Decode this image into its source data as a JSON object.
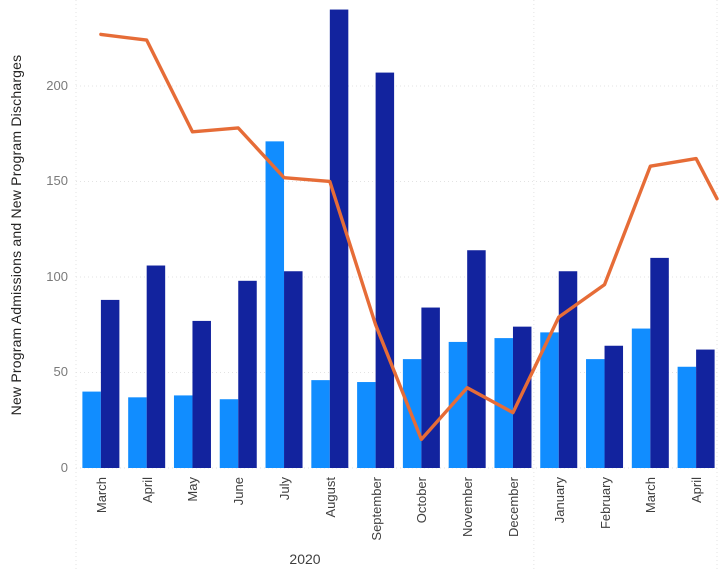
{
  "chart_data": {
    "type": "combo",
    "title": "",
    "ylabel": "New Program Admissions and New Program Discharges",
    "xlabel": "",
    "x_year_label": "2020",
    "categories": [
      "March",
      "April",
      "May",
      "June",
      "July",
      "August",
      "September",
      "October",
      "November",
      "December",
      "January",
      "February",
      "March",
      "April"
    ],
    "series": [
      {
        "name": "bars-light-blue",
        "type": "bar",
        "color": "#118DFF",
        "values": [
          40,
          37,
          38,
          36,
          171,
          46,
          45,
          57,
          66,
          68,
          71,
          57,
          73,
          53
        ]
      },
      {
        "name": "bars-dark-blue",
        "type": "bar",
        "color": "#12239E",
        "values": [
          88,
          106,
          77,
          98,
          103,
          240,
          207,
          84,
          114,
          74,
          103,
          64,
          110,
          62
        ]
      },
      {
        "name": "line-orange",
        "type": "line",
        "color": "#E66C37",
        "values": [
          227,
          224,
          176,
          178,
          152,
          150,
          75,
          15,
          42,
          29,
          79,
          96,
          158,
          162
        ],
        "clipped_end_value": 141
      }
    ],
    "yticks": [
      0,
      50,
      100,
      150,
      200
    ],
    "ylim": [
      0,
      245
    ],
    "grid": "dotted-horizontal",
    "legend": "none",
    "year_boundary_after_index": 9,
    "gridline_color": "#E3E3E3",
    "separator_color": "#E3E3E3"
  }
}
